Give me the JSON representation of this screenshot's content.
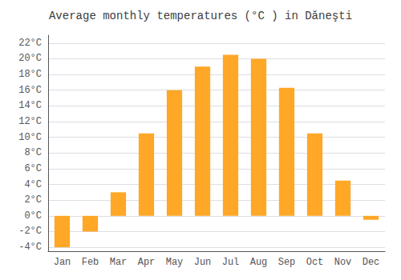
{
  "chart_data": {
    "type": "bar",
    "title": "Average monthly temperatures (°C ) in Dăneşti",
    "categories": [
      "Jan",
      "Feb",
      "Mar",
      "Apr",
      "May",
      "Jun",
      "Jul",
      "Aug",
      "Sep",
      "Oct",
      "Nov",
      "Dec"
    ],
    "values": [
      -4.0,
      -2.0,
      3.0,
      10.5,
      16.0,
      19.0,
      20.5,
      20.0,
      16.3,
      10.5,
      4.5,
      -0.5
    ],
    "color": "#FFA726",
    "ylim": [
      -4.5,
      23.0
    ],
    "yticks": [
      {
        "value": -4,
        "label": "-4°C"
      },
      {
        "value": -2,
        "label": "-2°C"
      },
      {
        "value": 0,
        "label": "0°C"
      },
      {
        "value": 2,
        "label": "2°C"
      },
      {
        "value": 4,
        "label": "4°C"
      },
      {
        "value": 6,
        "label": "6°C"
      },
      {
        "value": 8,
        "label": "8°C"
      },
      {
        "value": 10,
        "label": "10°C"
      },
      {
        "value": 12,
        "label": "12°C"
      },
      {
        "value": 14,
        "label": "14°C"
      },
      {
        "value": 16,
        "label": "16°C"
      },
      {
        "value": 18,
        "label": "18°C"
      },
      {
        "value": 20,
        "label": "20°C"
      },
      {
        "value": 22,
        "label": "22°C"
      }
    ],
    "grid": true
  }
}
